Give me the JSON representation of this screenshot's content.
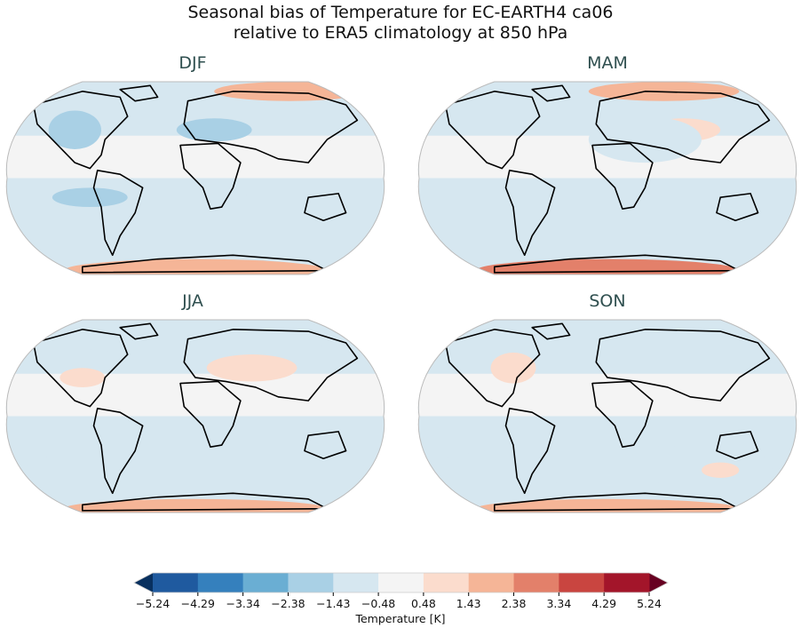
{
  "title": {
    "line1": "Seasonal bias of Temperature for EC-EARTH4 ca06",
    "line2": "relative to ERA5 climatology at 850 hPa"
  },
  "panels": [
    {
      "label": "DJF"
    },
    {
      "label": "MAM"
    },
    {
      "label": "JJA"
    },
    {
      "label": "SON"
    }
  ],
  "colorbar": {
    "label": "Temperature [K]",
    "ticks": [
      "−5.24",
      "−4.29",
      "−3.34",
      "−2.38",
      "−1.43",
      "−0.48",
      "0.48",
      "1.43",
      "2.38",
      "3.34",
      "4.29",
      "5.24"
    ],
    "under_color": "#08305f",
    "over_color": "#670021",
    "colors": [
      "#1f5a9f",
      "#3580bd",
      "#6aaed3",
      "#a9d0e5",
      "#d6e7f0",
      "#f4f4f4",
      "#fbdccd",
      "#f5b597",
      "#e3806a",
      "#c94540",
      "#a3152a"
    ],
    "extend": "both"
  }
}
